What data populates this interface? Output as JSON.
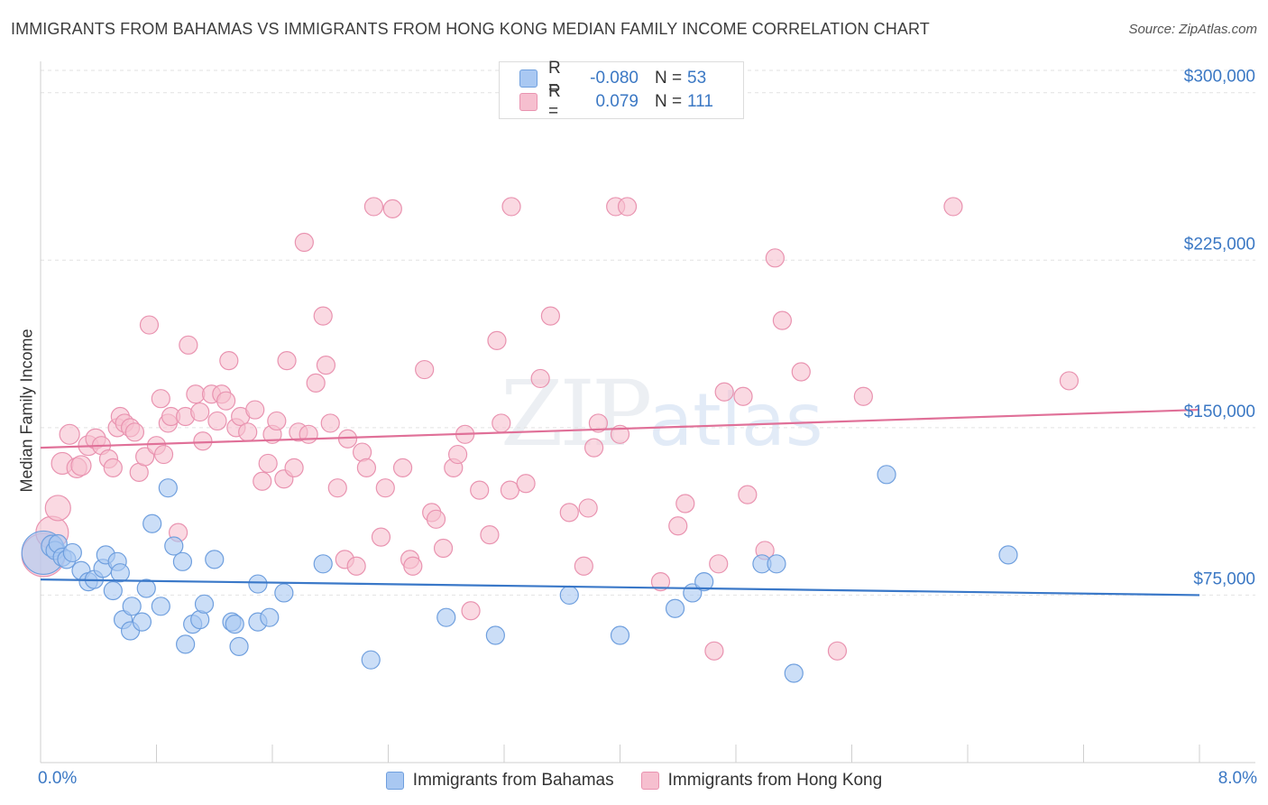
{
  "title": "IMMIGRANTS FROM BAHAMAS VS IMMIGRANTS FROM HONG KONG MEDIAN FAMILY INCOME CORRELATION CHART",
  "source": "Source: ZipAtlas.com",
  "watermark": {
    "zip": "ZIP",
    "atlas": "atlas"
  },
  "colors": {
    "bahamas_fill": "#a9c8f2",
    "bahamas_stroke": "#6f9fde",
    "bahamas_line": "#3a78c8",
    "hongkong_fill": "#f6bfcf",
    "hongkong_stroke": "#e993b0",
    "hongkong_line": "#e07098",
    "tick_label": "#3b78c4",
    "grid": "#e2e2e2"
  },
  "legend": {
    "bahamas": {
      "r_label": "R =",
      "r_value": "-0.080",
      "n_label": "N =",
      "n_value": "53"
    },
    "hongkong": {
      "r_label": "R =",
      "r_value": "0.079",
      "n_label": "N =",
      "n_value": "111"
    }
  },
  "chart_data": {
    "type": "scatter",
    "title": "IMMIGRANTS FROM BAHAMAS VS IMMIGRANTS FROM HONG KONG MEDIAN FAMILY INCOME CORRELATION CHART",
    "xlabel": "",
    "ylabel": "Median Family Income",
    "xlim": [
      0,
      8
    ],
    "ylim": [
      0,
      310000
    ],
    "x_tick_labels": {
      "min": "0.0%",
      "max": "8.0%"
    },
    "y_ticks": [
      75000,
      150000,
      225000,
      300000
    ],
    "y_tick_labels": [
      "$75,000",
      "$150,000",
      "$225,000",
      "$300,000"
    ],
    "legend_position": "top-center",
    "series": [
      {
        "name": "Immigrants from Bahamas",
        "trend": {
          "x": [
            0,
            8
          ],
          "y": [
            82000,
            75000
          ]
        },
        "points": [
          [
            0.02,
            94000,
            24
          ],
          [
            0.08,
            97000,
            12
          ],
          [
            0.1,
            95000,
            10
          ],
          [
            0.12,
            98000,
            10
          ],
          [
            0.15,
            92000,
            10
          ],
          [
            0.18,
            91000,
            10
          ],
          [
            0.22,
            94000,
            10
          ],
          [
            0.28,
            86000,
            10
          ],
          [
            0.33,
            81000,
            10
          ],
          [
            0.37,
            82000,
            10
          ],
          [
            0.43,
            87000,
            10
          ],
          [
            0.45,
            93000,
            10
          ],
          [
            0.5,
            77000,
            10
          ],
          [
            0.53,
            90000,
            10
          ],
          [
            0.55,
            85000,
            10
          ],
          [
            0.57,
            64000,
            10
          ],
          [
            0.62,
            59000,
            10
          ],
          [
            0.63,
            70000,
            10
          ],
          [
            0.7,
            63000,
            10
          ],
          [
            0.73,
            78000,
            10
          ],
          [
            0.77,
            107000,
            10
          ],
          [
            0.83,
            70000,
            10
          ],
          [
            0.88,
            123000,
            10
          ],
          [
            0.92,
            97000,
            10
          ],
          [
            0.98,
            90000,
            10
          ],
          [
            1.0,
            53000,
            10
          ],
          [
            1.05,
            62000,
            10
          ],
          [
            1.1,
            64000,
            10
          ],
          [
            1.13,
            71000,
            10
          ],
          [
            1.2,
            91000,
            10
          ],
          [
            1.32,
            63000,
            10
          ],
          [
            1.34,
            62000,
            10
          ],
          [
            1.37,
            52000,
            10
          ],
          [
            1.5,
            63000,
            10
          ],
          [
            1.5,
            80000,
            10
          ],
          [
            1.58,
            65000,
            10
          ],
          [
            1.68,
            76000,
            10
          ],
          [
            1.95,
            89000,
            10
          ],
          [
            2.28,
            46000,
            10
          ],
          [
            2.8,
            65000,
            10
          ],
          [
            3.14,
            57000,
            10
          ],
          [
            3.65,
            75000,
            10
          ],
          [
            4.0,
            57000,
            10
          ],
          [
            4.38,
            69000,
            10
          ],
          [
            4.5,
            76000,
            10
          ],
          [
            4.58,
            81000,
            10
          ],
          [
            4.98,
            89000,
            10
          ],
          [
            5.08,
            89000,
            10
          ],
          [
            5.2,
            40000,
            10
          ],
          [
            5.84,
            129000,
            10
          ],
          [
            6.68,
            93000,
            10
          ]
        ]
      },
      {
        "name": "Immigrants from Hong Kong",
        "trend": {
          "x": [
            0,
            8
          ],
          "y": [
            141000,
            158000
          ]
        },
        "points": [
          [
            0.02,
            93000,
            24
          ],
          [
            0.08,
            103000,
            18
          ],
          [
            0.12,
            114000,
            14
          ],
          [
            0.15,
            134000,
            12
          ],
          [
            0.2,
            147000,
            11
          ],
          [
            0.25,
            132000,
            11
          ],
          [
            0.28,
            133000,
            11
          ],
          [
            0.33,
            142000,
            11
          ],
          [
            0.38,
            145000,
            11
          ],
          [
            0.42,
            142000,
            10
          ],
          [
            0.47,
            136000,
            10
          ],
          [
            0.5,
            132000,
            10
          ],
          [
            0.53,
            150000,
            10
          ],
          [
            0.55,
            155000,
            10
          ],
          [
            0.58,
            152000,
            10
          ],
          [
            0.62,
            150000,
            10
          ],
          [
            0.65,
            148000,
            10
          ],
          [
            0.68,
            130000,
            10
          ],
          [
            0.72,
            137000,
            10
          ],
          [
            0.75,
            196000,
            10
          ],
          [
            0.8,
            142000,
            10
          ],
          [
            0.83,
            163000,
            10
          ],
          [
            0.85,
            138000,
            10
          ],
          [
            0.88,
            152000,
            10
          ],
          [
            0.9,
            155000,
            10
          ],
          [
            0.95,
            103000,
            10
          ],
          [
            1.0,
            155000,
            10
          ],
          [
            1.02,
            187000,
            10
          ],
          [
            1.07,
            165000,
            10
          ],
          [
            1.1,
            157000,
            10
          ],
          [
            1.12,
            144000,
            10
          ],
          [
            1.18,
            165000,
            10
          ],
          [
            1.22,
            153000,
            10
          ],
          [
            1.25,
            165000,
            10
          ],
          [
            1.28,
            162000,
            10
          ],
          [
            1.3,
            180000,
            10
          ],
          [
            1.35,
            150000,
            10
          ],
          [
            1.38,
            155000,
            10
          ],
          [
            1.43,
            148000,
            10
          ],
          [
            1.48,
            158000,
            10
          ],
          [
            1.53,
            126000,
            10
          ],
          [
            1.57,
            134000,
            10
          ],
          [
            1.6,
            147000,
            10
          ],
          [
            1.63,
            153000,
            10
          ],
          [
            1.68,
            127000,
            10
          ],
          [
            1.7,
            180000,
            10
          ],
          [
            1.75,
            132000,
            10
          ],
          [
            1.78,
            148000,
            10
          ],
          [
            1.82,
            233000,
            10
          ],
          [
            1.85,
            147000,
            10
          ],
          [
            1.9,
            170000,
            10
          ],
          [
            1.95,
            200000,
            10
          ],
          [
            1.97,
            178000,
            10
          ],
          [
            2.0,
            152000,
            10
          ],
          [
            2.05,
            123000,
            10
          ],
          [
            2.1,
            91000,
            10
          ],
          [
            2.12,
            145000,
            10
          ],
          [
            2.18,
            88000,
            10
          ],
          [
            2.22,
            139000,
            10
          ],
          [
            2.25,
            132000,
            10
          ],
          [
            2.3,
            249000,
            10
          ],
          [
            2.35,
            101000,
            10
          ],
          [
            2.38,
            123000,
            10
          ],
          [
            2.43,
            248000,
            10
          ],
          [
            2.5,
            132000,
            10
          ],
          [
            2.55,
            91000,
            10
          ],
          [
            2.57,
            88000,
            10
          ],
          [
            2.65,
            176000,
            10
          ],
          [
            2.7,
            112000,
            10
          ],
          [
            2.73,
            109000,
            10
          ],
          [
            2.78,
            96000,
            10
          ],
          [
            2.85,
            132000,
            10
          ],
          [
            2.88,
            138000,
            10
          ],
          [
            2.93,
            147000,
            10
          ],
          [
            2.97,
            68000,
            10
          ],
          [
            3.03,
            122000,
            10
          ],
          [
            3.1,
            102000,
            10
          ],
          [
            3.15,
            189000,
            10
          ],
          [
            3.18,
            152000,
            10
          ],
          [
            3.24,
            122000,
            10
          ],
          [
            3.25,
            249000,
            10
          ],
          [
            3.35,
            125000,
            10
          ],
          [
            3.45,
            172000,
            10
          ],
          [
            3.52,
            200000,
            10
          ],
          [
            3.65,
            112000,
            10
          ],
          [
            3.75,
            88000,
            10
          ],
          [
            3.78,
            114000,
            10
          ],
          [
            3.82,
            141000,
            10
          ],
          [
            3.85,
            152000,
            10
          ],
          [
            3.97,
            249000,
            10
          ],
          [
            4.0,
            147000,
            10
          ],
          [
            4.05,
            249000,
            10
          ],
          [
            4.28,
            81000,
            10
          ],
          [
            4.4,
            106000,
            10
          ],
          [
            4.45,
            116000,
            10
          ],
          [
            4.65,
            50000,
            10
          ],
          [
            4.68,
            89000,
            10
          ],
          [
            4.72,
            166000,
            10
          ],
          [
            4.85,
            164000,
            10
          ],
          [
            4.88,
            120000,
            10
          ],
          [
            5.0,
            95000,
            10
          ],
          [
            5.07,
            226000,
            10
          ],
          [
            5.12,
            198000,
            10
          ],
          [
            5.25,
            175000,
            10
          ],
          [
            5.5,
            50000,
            10
          ],
          [
            5.68,
            164000,
            10
          ],
          [
            6.3,
            249000,
            10
          ],
          [
            7.1,
            171000,
            10
          ]
        ]
      }
    ]
  },
  "legend_bottom": {
    "bahamas": "Immigrants from Bahamas",
    "hongkong": "Immigrants from Hong Kong"
  }
}
